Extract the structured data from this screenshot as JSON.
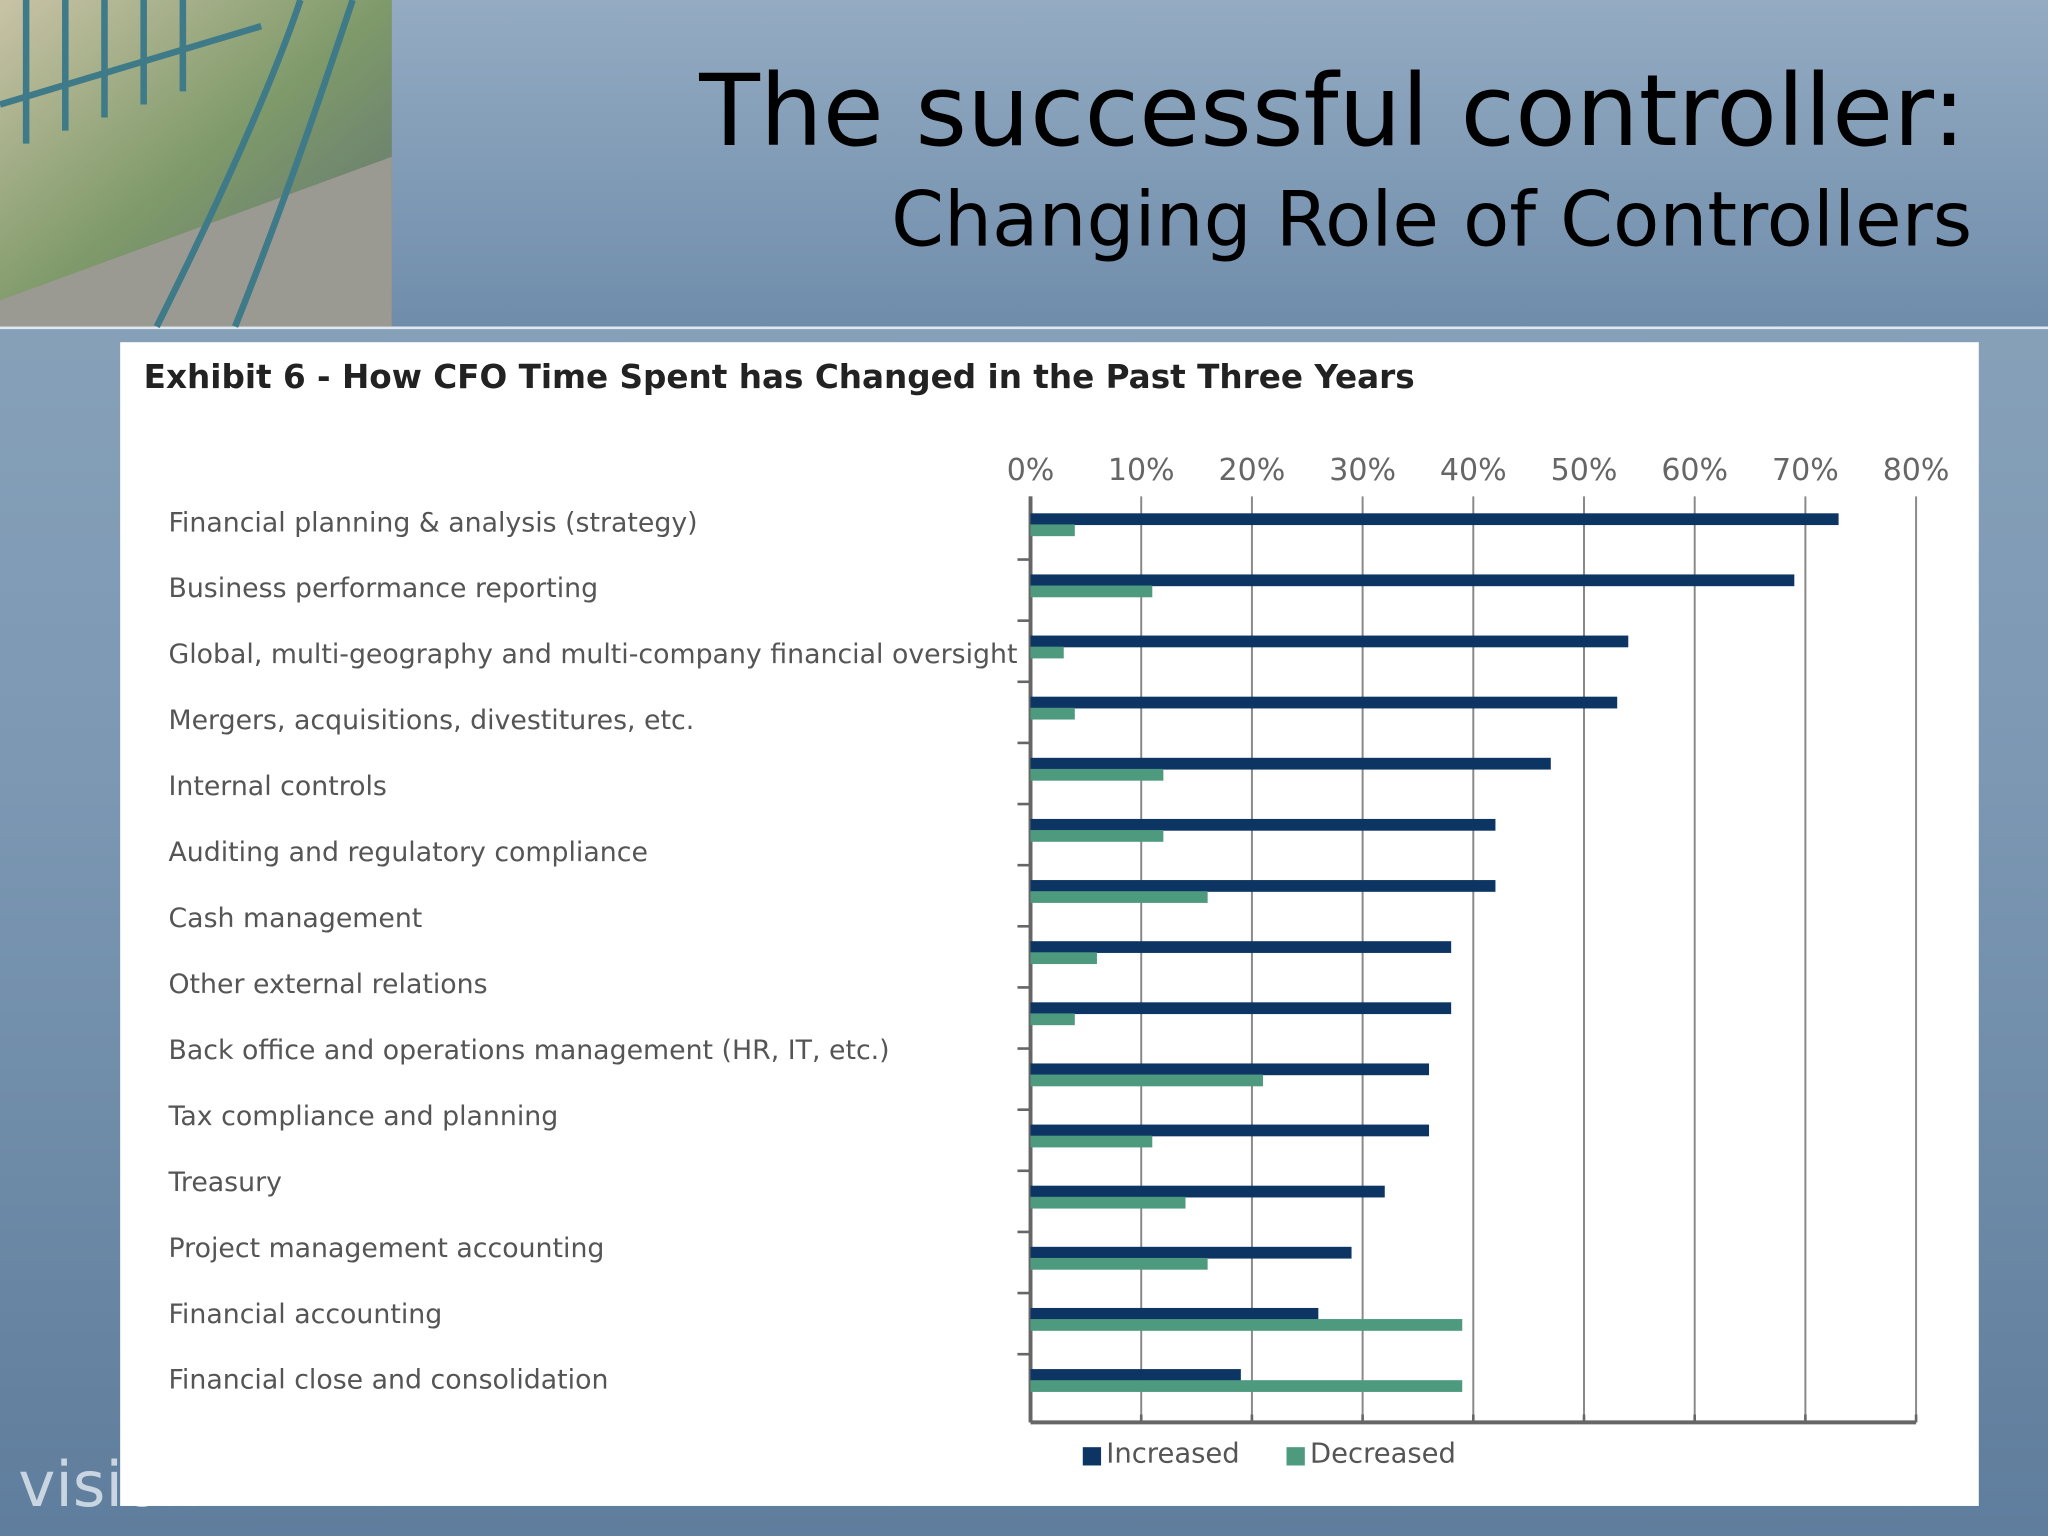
{
  "slide": {
    "title": "The successful controller:",
    "subtitle": "Changing Role of Controllers",
    "logo": "vision"
  },
  "chart_data": {
    "type": "hbar",
    "title": "Exhibit 6 - How CFO Time Spent has Changed in the Past Three Years",
    "categories": [
      "Financial planning & analysis (strategy)",
      "Business performance reporting",
      "Global, multi-geography and multi-company financial oversight",
      "Mergers, acquisitions, divestitures, etc.",
      "Internal controls",
      "Auditing and regulatory compliance",
      "Cash management",
      "Other external relations",
      "Back office and operations management (HR, IT, etc.)",
      "Tax compliance and planning",
      "Treasury",
      "Project management accounting",
      "Financial accounting",
      "Financial close and consolidation",
      null
    ],
    "series": [
      {
        "name": "Increased",
        "color": "#0d3563",
        "values": [
          73,
          69,
          54,
          53,
          47,
          42,
          42,
          38,
          38,
          36,
          36,
          32,
          29,
          26,
          19
        ]
      },
      {
        "name": "Decreased",
        "color": "#4e9a7e",
        "values": [
          4,
          11,
          3,
          4,
          12,
          12,
          16,
          6,
          4,
          21,
          11,
          14,
          16,
          39,
          39
        ]
      }
    ],
    "xlim": [
      0,
      80
    ],
    "xticks": [
      {
        "value": 0,
        "label": "0%"
      },
      {
        "value": 10,
        "label": "10%"
      },
      {
        "value": 20,
        "label": "20%"
      },
      {
        "value": 30,
        "label": "30%"
      },
      {
        "value": 40,
        "label": "40%"
      },
      {
        "value": 50,
        "label": "50%"
      },
      {
        "value": 60,
        "label": "60%"
      },
      {
        "value": 70,
        "label": "70%"
      },
      {
        "value": 80,
        "label": "80%"
      }
    ],
    "grid": true,
    "legend": "bottom"
  }
}
